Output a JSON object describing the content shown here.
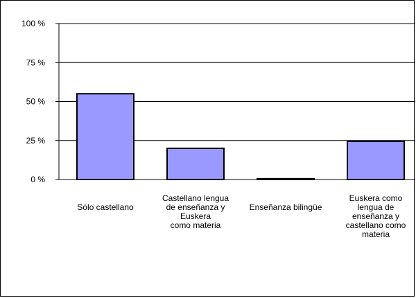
{
  "chart_data": {
    "type": "bar",
    "categories": [
      [
        "Sólo castellano"
      ],
      [
        "Castellano lengua",
        "de enseñanza y",
        "Euskera",
        "como materia"
      ],
      [
        "Enseñanza bilingüe"
      ],
      [
        "Euskera como",
        "lengua de",
        "enseñanza y",
        "castellano como",
        "materia"
      ]
    ],
    "values": [
      55,
      20,
      0.5,
      24.5
    ],
    "ylim": [
      0,
      100
    ],
    "yticks": [
      0,
      25,
      50,
      75,
      100
    ],
    "ytick_labels": [
      "0 %",
      "25 %",
      "50 %",
      "75 %",
      "100 %"
    ],
    "grid": true,
    "legend": "none",
    "title": "",
    "xlabel": "",
    "ylabel": ""
  },
  "colors": {
    "bar_fill": "#9999ff",
    "bar_stroke": "#000000",
    "grid": "#000000",
    "background": "#ffffff"
  }
}
